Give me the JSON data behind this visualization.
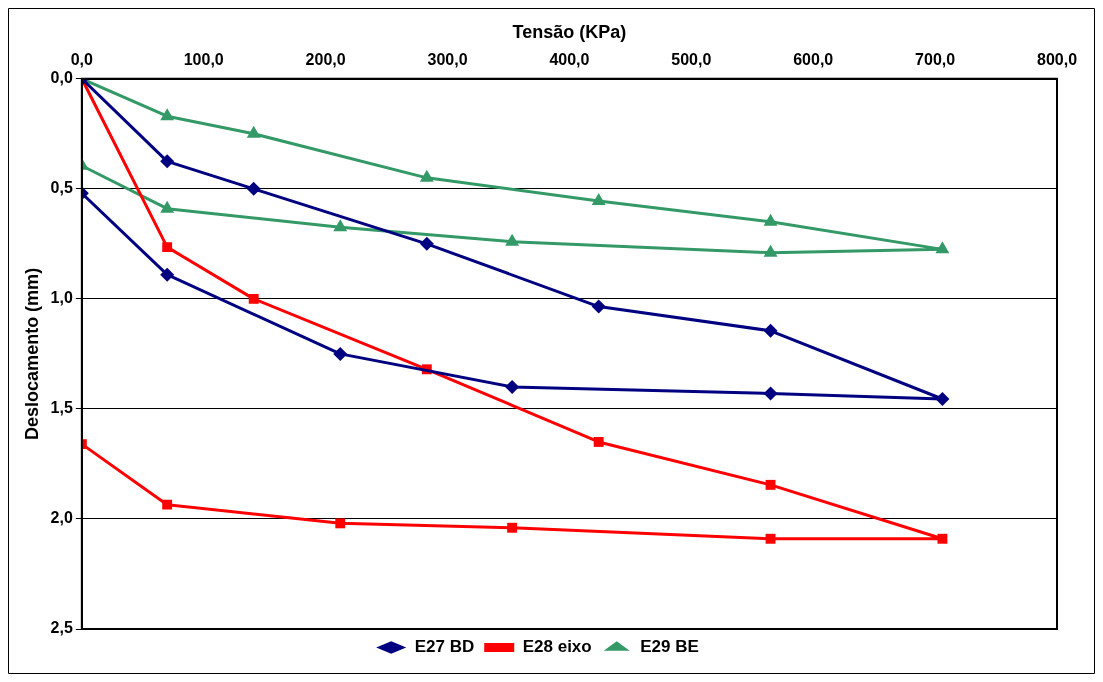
{
  "chart_data": {
    "type": "line",
    "xlabel": "Tensão (KPa)",
    "ylabel": "Deslocamento (mm)",
    "xlim": [
      0,
      800
    ],
    "xticks": [
      {
        "value": 0,
        "label": "0,0"
      },
      {
        "value": 100,
        "label": "100,0"
      },
      {
        "value": 200,
        "label": "200,0"
      },
      {
        "value": 300,
        "label": "300,0"
      },
      {
        "value": 400,
        "label": "400,0"
      },
      {
        "value": 500,
        "label": "500,0"
      },
      {
        "value": 600,
        "label": "600,0"
      },
      {
        "value": 700,
        "label": "700,0"
      },
      {
        "value": 800,
        "label": "800,0"
      }
    ],
    "ylim": [
      2.5,
      0
    ],
    "yticks": [
      {
        "value": 0,
        "label": "0,0"
      },
      {
        "value": 0.5,
        "label": "0,5"
      },
      {
        "value": 1,
        "label": "1,0"
      },
      {
        "value": 1.5,
        "label": "1,5"
      },
      {
        "value": 2,
        "label": "2,0"
      },
      {
        "value": 2.5,
        "label": "2,5"
      }
    ],
    "grid": "y",
    "legend": "bottom",
    "line_style": "solid",
    "series": [
      {
        "name": "E27 BD",
        "color": "#000080",
        "marker": "diamond",
        "x": [
          0,
          70,
          141,
          283,
          424,
          565,
          706,
          565,
          353,
          212,
          70,
          0
        ],
        "values": [
          0,
          0.375,
          0.5,
          0.75,
          1.035,
          1.145,
          1.455,
          1.43,
          1.4,
          1.25,
          0.89,
          0.52
        ]
      },
      {
        "name": "E28 eixo",
        "color": "#ff0000",
        "marker": "square",
        "x": [
          0,
          70,
          141,
          283,
          424,
          565,
          706,
          565,
          353,
          212,
          70,
          0
        ],
        "values": [
          0,
          0.765,
          1.0,
          1.32,
          1.65,
          1.845,
          2.09,
          2.09,
          2.04,
          2.02,
          1.935,
          1.66
        ]
      },
      {
        "name": "E29 BE",
        "color": "#339966",
        "marker": "triangle",
        "x": [
          0,
          70,
          141,
          283,
          424,
          565,
          706,
          565,
          353,
          212,
          70,
          0
        ],
        "values": [
          0,
          0.17,
          0.25,
          0.45,
          0.555,
          0.65,
          0.775,
          0.79,
          0.74,
          0.675,
          0.59,
          0.395
        ]
      }
    ]
  }
}
